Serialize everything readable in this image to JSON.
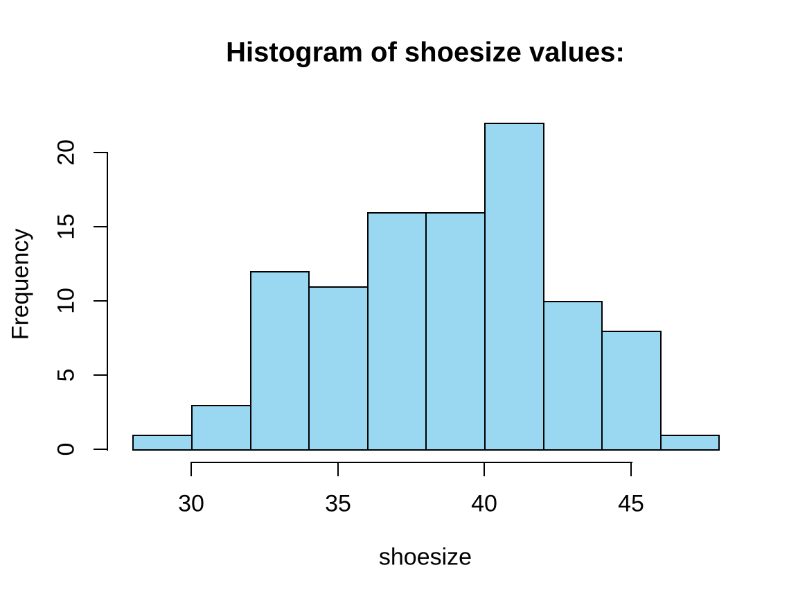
{
  "chart_data": {
    "type": "bar",
    "subtype": "histogram",
    "title": "Histogram of shoesize values:",
    "xlabel": "shoesize",
    "ylabel": "Frequency",
    "bin_edges": [
      28,
      30,
      32,
      34,
      36,
      38,
      40,
      42,
      44,
      46,
      48
    ],
    "counts": [
      1,
      3,
      12,
      11,
      16,
      16,
      22,
      10,
      8,
      1
    ],
    "x_ticks": [
      30,
      35,
      40,
      45
    ],
    "y_ticks": [
      0,
      5,
      10,
      15,
      20
    ],
    "xlim": [
      28,
      48
    ],
    "ylim": [
      0,
      22
    ],
    "bar_fill": "#99d8f0",
    "bar_border": "#000000",
    "background": "#ffffff",
    "grid": "off",
    "legend": "none"
  }
}
